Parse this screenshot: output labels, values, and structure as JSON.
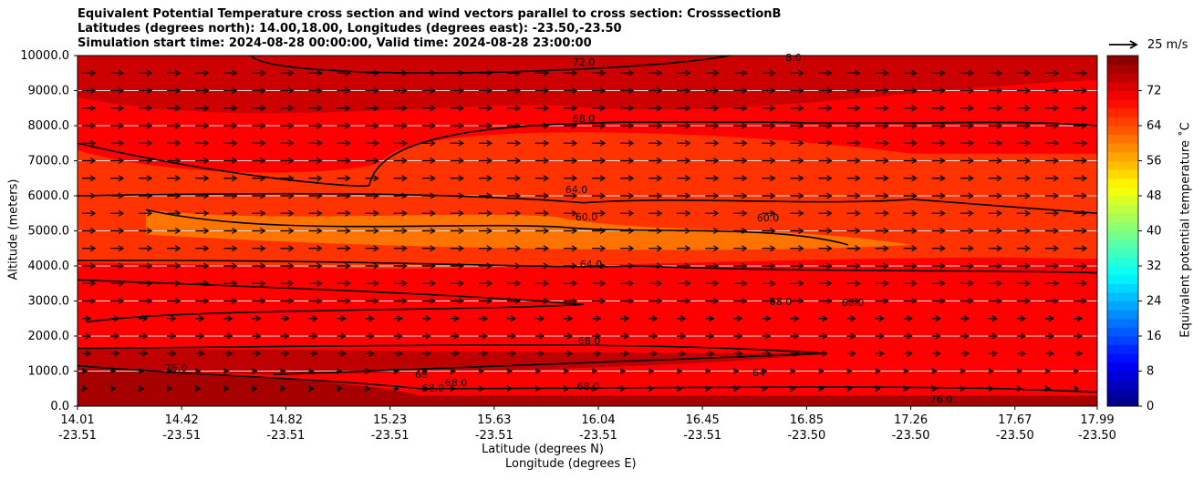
{
  "title_lines": [
    "Equivalent Potential Temperature cross section and wind vectors parallel to cross section: CrosssectionB",
    "Latitudes (degrees north): 14.00,18.00, Longitudes (degrees east): -23.50,-23.50",
    "Simulation start time: 2024-08-28 00:00:00, Valid time: 2024-08-28 23:00:00"
  ],
  "wind_reference": "25 m/s",
  "colorbar_label": "Equivalent potential temperature ˚C",
  "chart_data": {
    "type": "heatmap",
    "title": "Equivalent Potential Temperature cross section and wind vectors parallel to cross section: CrosssectionB",
    "xlabel_top": "Latitude (degrees N)",
    "xlabel_bottom": "Longitude (degrees E)",
    "ylabel": "Altitude (meters)",
    "ylim": [
      0,
      10000
    ],
    "y_ticks": [
      "0.0",
      "1000.0",
      "2000.0",
      "3000.0",
      "4000.0",
      "5000.0",
      "6000.0",
      "7000.0",
      "8000.0",
      "9000.0",
      "10000.0"
    ],
    "x_ticks_lat": [
      "14.01",
      "14.42",
      "14.82",
      "15.23",
      "15.63",
      "16.04",
      "16.45",
      "16.85",
      "17.26",
      "17.67",
      "17.99"
    ],
    "x_ticks_lon": [
      "-23.51",
      "-23.51",
      "-23.51",
      "-23.51",
      "-23.51",
      "-23.51",
      "-23.51",
      "-23.50",
      "-23.50",
      "-23.50",
      "-23.50"
    ],
    "colorbar_range": [
      0,
      80
    ],
    "colorbar_ticks": [
      "0",
      "8",
      "16",
      "24",
      "32",
      "40",
      "48",
      "56",
      "64",
      "72"
    ],
    "colormap": "jet",
    "contour_labels": [
      "72.0",
      "8.0",
      "68.0",
      "64.0",
      "60.0",
      "60.0",
      "64.0",
      "68.0",
      "68.0",
      "68.0",
      "76.0",
      "68",
      "68.0",
      "68.0",
      "68.0",
      "64",
      "76.0"
    ],
    "grid": true
  }
}
